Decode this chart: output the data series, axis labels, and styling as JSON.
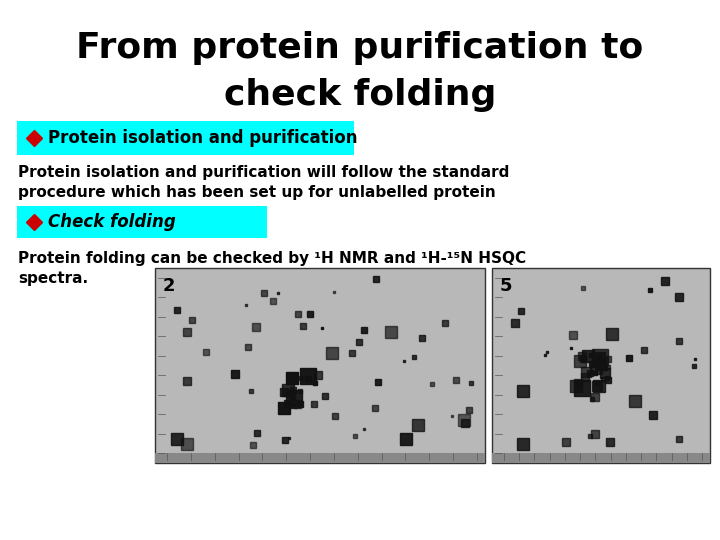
{
  "title_line1": "From protein purification to",
  "title_line2": "check folding",
  "title_fontsize": 26,
  "title_color": "#000000",
  "bg_color": "#ffffff",
  "cyan_color": "#00FFFF",
  "red_diamond_color": "#CC0000",
  "bullet1_text": "Protein isolation and purification",
  "bullet2_text": "Check folding",
  "body1_line1": "Protein isolation and purification will follow the standard",
  "body1_line2": "procedure which has been set up for unlabelled protein",
  "body2_line1": "Protein folding can be checked by ¹H NMR and ¹H-¹⁵N HSQC",
  "body2_line2": "spectra.",
  "body_fontsize": 11,
  "bullet_fontsize": 12,
  "label2_text": "2",
  "label5_text": "5"
}
